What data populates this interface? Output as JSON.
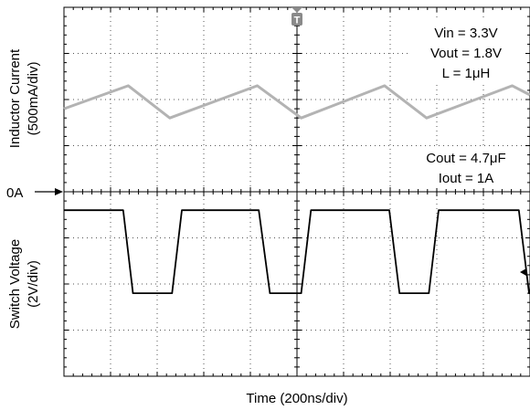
{
  "chart_data": {
    "type": "line",
    "xlabel": "Time (200ns/div)",
    "x_div": 10,
    "y_div": 8,
    "ylabel_top": [
      "Inductor Current",
      "(500mA/div)"
    ],
    "ylabel_bottom": [
      "Switch Voltage",
      "(2V/div)"
    ],
    "zero_marker": "0A",
    "trigger_marker": "T",
    "annotations_top": [
      "Vin = 3.3V",
      "Vout = 1.8V",
      "L = 1μH"
    ],
    "annotations_mid": [
      "Cout = 4.7μF",
      "Iout = 1A"
    ],
    "series": [
      {
        "color": "#b3b3b3",
        "x_div": [
          0.0,
          1.38,
          2.27,
          4.15,
          5.09,
          6.88,
          7.78,
          9.62,
          10.0
        ],
        "y_div": [
          5.8,
          6.3,
          5.6,
          6.3,
          5.6,
          6.3,
          5.6,
          6.3,
          6.1
        ]
      },
      {
        "color": "#000000",
        "x_div": [
          0.0,
          1.27,
          1.48,
          2.32,
          2.53,
          4.18,
          4.42,
          5.09,
          5.3,
          6.98,
          7.2,
          7.83,
          8.04,
          9.76,
          9.98,
          10.0
        ],
        "y_div": [
          3.6,
          3.6,
          1.8,
          1.8,
          3.6,
          3.6,
          1.8,
          1.8,
          3.6,
          3.6,
          1.8,
          1.8,
          3.6,
          3.6,
          1.8,
          1.8
        ]
      }
    ]
  }
}
